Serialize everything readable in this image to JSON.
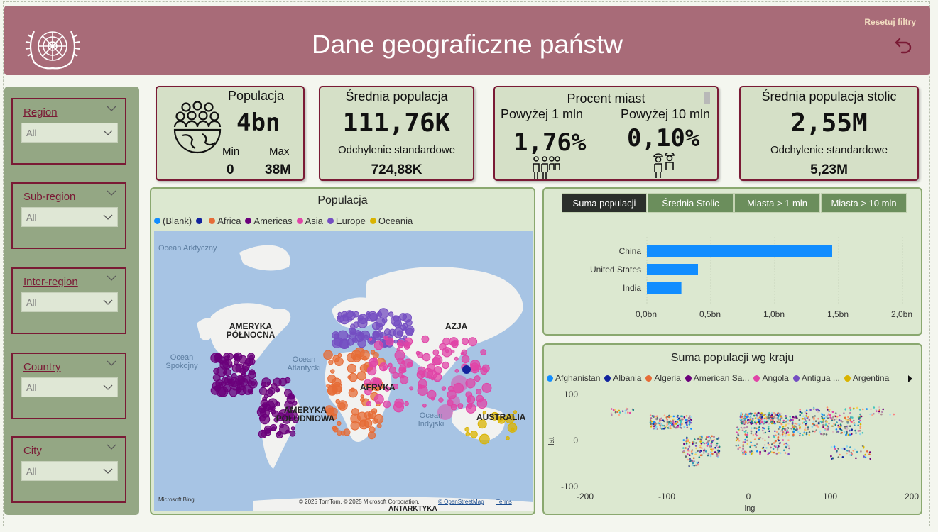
{
  "header": {
    "title": "Dane geograficzne państw",
    "reset_label": "Resetuj filtry"
  },
  "slicers": [
    {
      "label": "Region",
      "value": "All"
    },
    {
      "label": "Sub-region",
      "value": "All"
    },
    {
      "label": "Inter-region",
      "value": "All"
    },
    {
      "label": "Country",
      "value": "All"
    },
    {
      "label": "City",
      "value": "All"
    }
  ],
  "cards": {
    "population": {
      "title": "Populacja",
      "value": "4bn",
      "min_label": "Min",
      "max_label": "Max",
      "min_value": "0",
      "max_value": "38M"
    },
    "avg_population": {
      "title": "Średnia populacja",
      "value": "111,76K",
      "std_label": "Odchylenie standardowe",
      "std_value": "724,88K"
    },
    "city_percent": {
      "title": "Procent miast",
      "over1_label": "Powyżej 1 mln",
      "over1_value": "1,76%",
      "over10_label": "Powyżej 10 mln",
      "over10_value": "0,10%"
    },
    "avg_capital": {
      "title": "Średnia populacja stolic",
      "value": "2,55M",
      "std_label": "Odchylenie standardowe",
      "std_value": "5,23M"
    }
  },
  "map_panel": {
    "title": "Populacja",
    "legend": [
      {
        "name": "(Blank)",
        "color": "#118DFF"
      },
      {
        "name": "",
        "color": "#12239E"
      },
      {
        "name": "Africa",
        "color": "#E66C37"
      },
      {
        "name": "Americas",
        "color": "#6B007B"
      },
      {
        "name": "Asia",
        "color": "#E044A7"
      },
      {
        "name": "Europe",
        "color": "#744EC2"
      },
      {
        "name": "Oceania",
        "color": "#D9B300"
      }
    ],
    "labels": {
      "arctic": "Ocean Arktyczny",
      "pacific": "Ocean Spokojny",
      "atlantic": "Ocean Atlantycki",
      "indian": "Ocean Indyjski",
      "north_america": "AMERYKA PÓŁNOCNA",
      "south_america": "AMERYKA POŁUDNIOWA",
      "africa": "AFRYKA",
      "asia": "AZJA",
      "australia": "AUSTRALIA",
      "antarctica": "ANTARKTYKA"
    },
    "bing": "Microsoft Bing",
    "copyright": "© 2025 TomTom, © 2025 Microsoft Corporation,",
    "osm": "© OpenStreetMap",
    "terms": "Terms"
  },
  "bar_panel": {
    "tabs": [
      {
        "label": "Suma populacji",
        "active": true
      },
      {
        "label": "Średnia Stolic",
        "active": false
      },
      {
        "label": "Miasta > 1 mln",
        "active": false
      },
      {
        "label": "Miasta > 10 mln",
        "active": false
      }
    ],
    "chart_data": {
      "type": "bar",
      "orientation": "horizontal",
      "categories": [
        "China",
        "United States",
        "India"
      ],
      "values": [
        1.45,
        0.4,
        0.27
      ],
      "unit": "bn",
      "xlim": [
        0,
        2.0
      ],
      "ticks": [
        "0,0bn",
        "0,5bn",
        "1,0bn",
        "1,5bn",
        "2,0bn"
      ],
      "color": "#118DFF"
    }
  },
  "scatter_panel": {
    "title": "Suma populacji wg kraju",
    "legend": [
      {
        "name": "Afghanistan",
        "color": "#118DFF"
      },
      {
        "name": "Albania",
        "color": "#12239E"
      },
      {
        "name": "Algeria",
        "color": "#E66C37"
      },
      {
        "name": "American Sa...",
        "color": "#6B007B"
      },
      {
        "name": "Angola",
        "color": "#E044A7"
      },
      {
        "name": "Antigua ...",
        "color": "#744EC2"
      },
      {
        "name": "Argentina",
        "color": "#D9B300"
      }
    ],
    "chart_data": {
      "type": "scatter",
      "xlabel": "lng",
      "ylabel": "lat",
      "xlim": [
        -200,
        200
      ],
      "ylim": [
        -100,
        100
      ],
      "xticks": [
        "-200",
        "-100",
        "0",
        "100",
        "200"
      ],
      "yticks": [
        "100",
        "0",
        "-100"
      ]
    }
  }
}
